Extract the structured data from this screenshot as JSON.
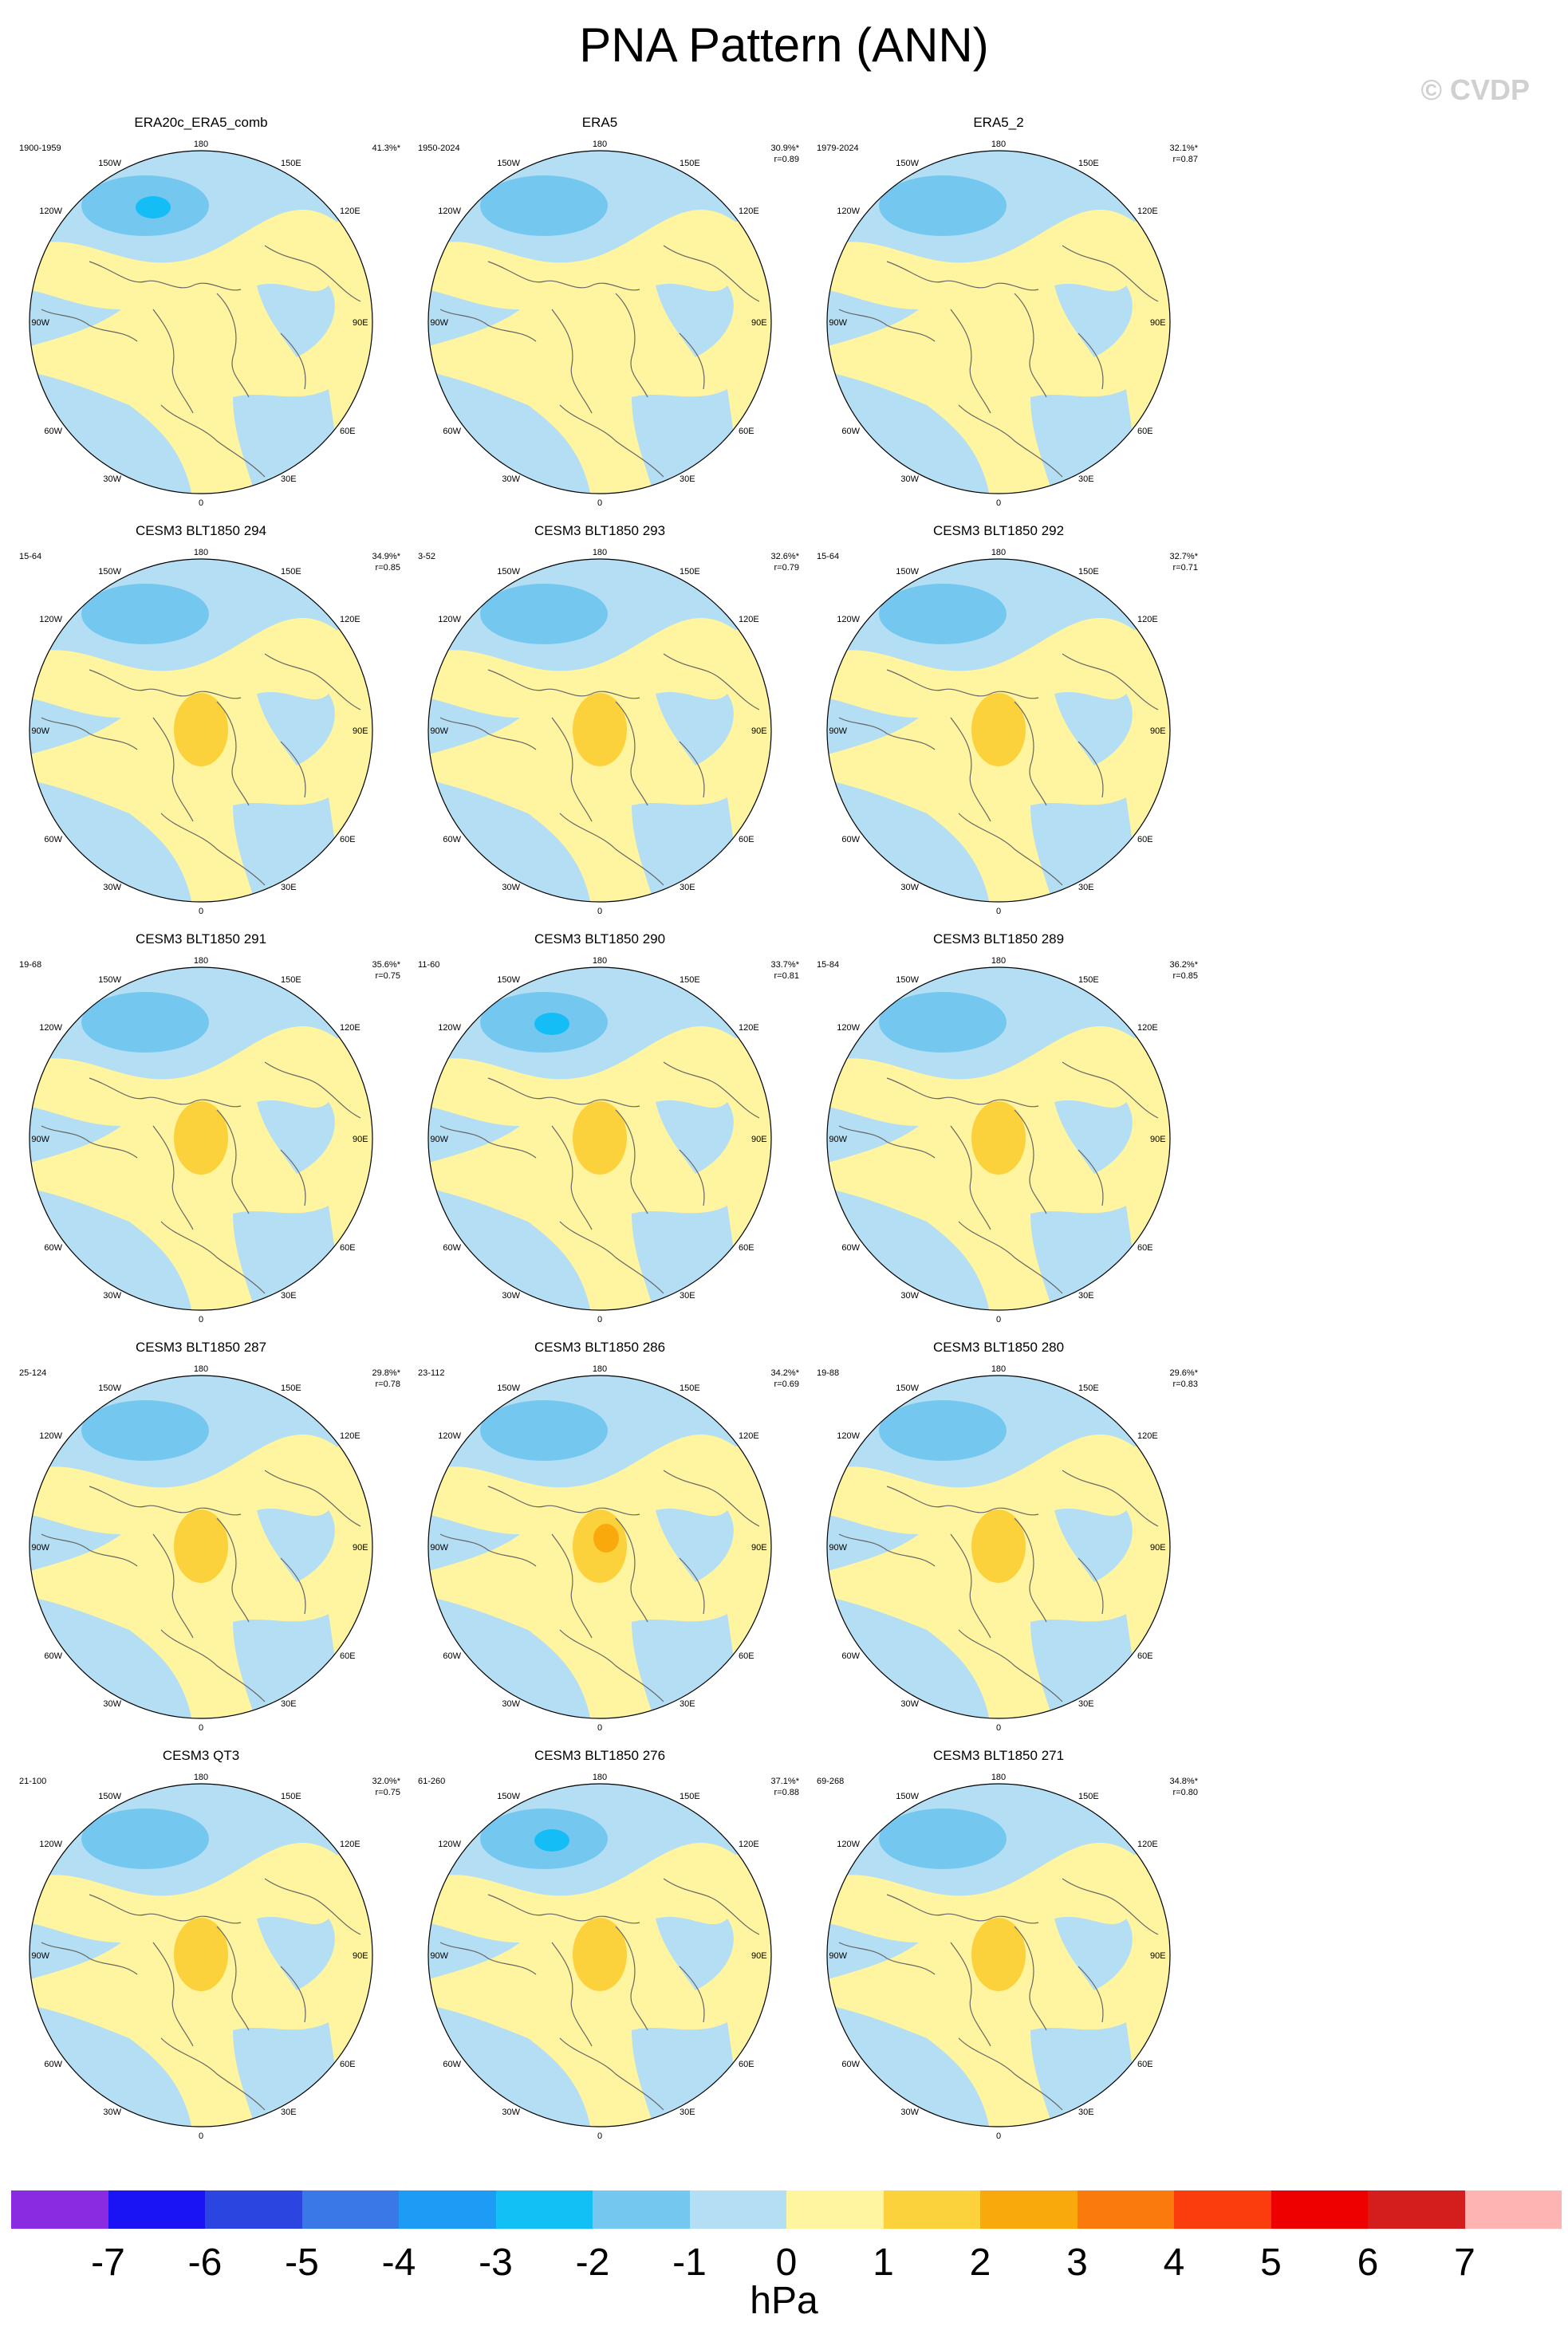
{
  "title": "PNA Pattern (ANN)",
  "credit": "© CVDP",
  "colors": {
    "neg1": "#b4def3",
    "neg2": "#74c8f0",
    "neg3": "#14bdf5",
    "pos1": "#fff4a0",
    "pos2": "#fcd23c",
    "pos3": "#f9a90c",
    "coast": "#666666"
  },
  "lon_labels": [
    "180",
    "150W",
    "150E",
    "120W",
    "120E",
    "90W",
    "90E",
    "60W",
    "60E",
    "30W",
    "30E",
    "0"
  ],
  "panels": [
    {
      "name": "ERA20c_ERA5_comb",
      "years": "1900-1959",
      "pct": "41.3%*",
      "r": "",
      "center": 3
    },
    {
      "name": "ERA5",
      "years": "1950-2024",
      "pct": "30.9%*",
      "r": "r=0.89",
      "center": 1
    },
    {
      "name": "ERA5_2",
      "years": "1979-2024",
      "pct": "32.1%*",
      "r": "r=0.87",
      "center": 1
    },
    {
      "name": "CESM3 BLT1850 294",
      "years": "15-64",
      "pct": "34.9%*",
      "r": "r=0.85",
      "center": 2
    },
    {
      "name": "CESM3 BLT1850 293",
      "years": "3-52",
      "pct": "32.6%*",
      "r": "r=0.79",
      "center": 2
    },
    {
      "name": "CESM3 BLT1850 292",
      "years": "15-64",
      "pct": "32.7%*",
      "r": "r=0.71",
      "center": 2
    },
    {
      "name": "CESM3 BLT1850 291",
      "years": "19-68",
      "pct": "35.6%*",
      "r": "r=0.75",
      "center": 2
    },
    {
      "name": "CESM3 BLT1850 290",
      "years": "11-60",
      "pct": "33.7%*",
      "r": "r=0.81",
      "center": 3
    },
    {
      "name": "CESM3 BLT1850 289",
      "years": "15-84",
      "pct": "36.2%*",
      "r": "r=0.85",
      "center": 2
    },
    {
      "name": "CESM3 BLT1850 287",
      "years": "25-124",
      "pct": "29.8%*",
      "r": "r=0.78",
      "center": 2
    },
    {
      "name": "CESM3 BLT1850 286",
      "years": "23-112",
      "pct": "34.2%*",
      "r": "r=0.69",
      "center": 2
    },
    {
      "name": "CESM3 BLT1850 280",
      "years": "19-88",
      "pct": "29.6%*",
      "r": "r=0.83",
      "center": 2
    },
    {
      "name": "CESM3 QT3",
      "years": "21-100",
      "pct": "32.0%*",
      "r": "r=0.75",
      "center": 2
    },
    {
      "name": "CESM3 BLT1850 276",
      "years": "61-260",
      "pct": "37.1%*",
      "r": "r=0.88",
      "center": 3
    },
    {
      "name": "CESM3 BLT1850 271",
      "years": "69-268",
      "pct": "34.8%*",
      "r": "r=0.80",
      "center": 2
    }
  ],
  "colorbar": {
    "colors": [
      "#8a2be2",
      "#1a14f5",
      "#2b46e0",
      "#3a78e8",
      "#1e9bf5",
      "#12c0f5",
      "#74c8f0",
      "#b4def3",
      "#fff4a0",
      "#fcd23c",
      "#f9a90c",
      "#fb7a0c",
      "#fb3c0c",
      "#ee0000",
      "#d41e1e",
      "#ffb4b4"
    ],
    "ticks": [
      "-7",
      "-6",
      "-5",
      "-4",
      "-3",
      "-2",
      "-1",
      "0",
      "1",
      "2",
      "3",
      "4",
      "5",
      "6",
      "7"
    ],
    "units": "hPa"
  }
}
